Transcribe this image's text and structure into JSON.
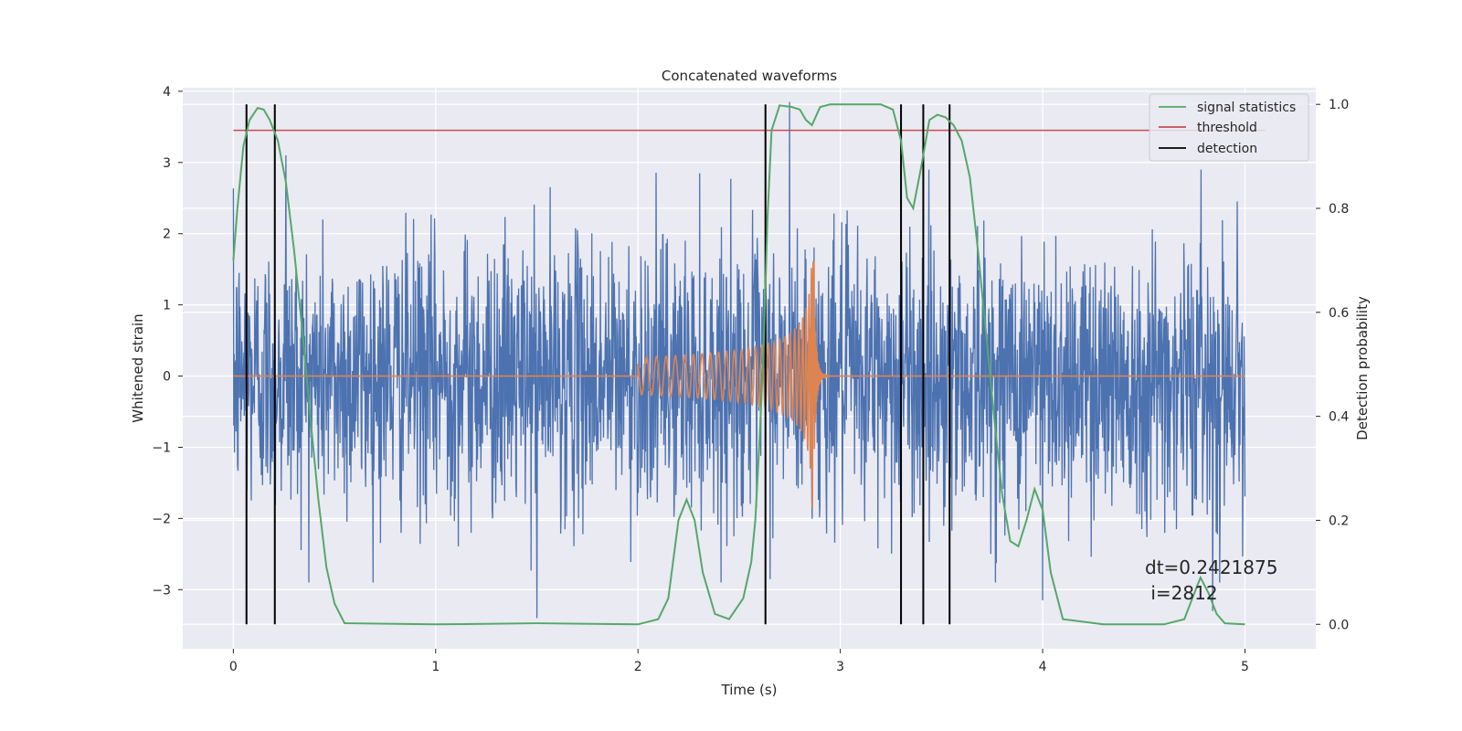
{
  "chart_data": {
    "type": "line",
    "title": "Concatenated waveforms",
    "xlabel": "Time (s)",
    "ylabel": "Whitened strain",
    "ylabel_right": "Detection probability",
    "xlim": [
      -0.25,
      5.35
    ],
    "ylim": [
      -3.83,
      4.05
    ],
    "ylim_right": [
      -0.047,
      1.032
    ],
    "x_ticks": [
      0,
      1,
      2,
      3,
      4,
      5
    ],
    "y_ticks": [
      -3,
      -2,
      -1,
      0,
      1,
      2,
      3,
      4
    ],
    "y_ticks_right": [
      0.0,
      0.2,
      0.4,
      0.6,
      0.8,
      1.0
    ],
    "x_tick_labels": [
      "0",
      "1",
      "2",
      "3",
      "4",
      "5"
    ],
    "y_tick_labels": [
      "−3",
      "−2",
      "−1",
      "0",
      "1",
      "2",
      "3",
      "4"
    ],
    "y_tick_labels_right": [
      "0.0",
      "0.2",
      "0.4",
      "0.6",
      "0.8",
      "1.0"
    ],
    "grid": true,
    "legend_position": "top-right",
    "colors": {
      "background": "#eaeaf2",
      "grid": "#ffffff",
      "strain": "#4c72b0",
      "injection": "#dd8452",
      "signal_statistics": "#55a868",
      "threshold": "#c44e52",
      "detection": "#000000"
    },
    "series": [
      {
        "name": "",
        "kind": "noisy-strain",
        "axis": "left",
        "x_range": [
          0,
          5
        ],
        "amplitude_envelope": [
          -2.6,
          2.6
        ],
        "notable_peaks": [
          {
            "x": 0.26,
            "y": 3.1
          },
          {
            "x": 2.75,
            "y": 3.85
          },
          {
            "x": 1.5,
            "y": -3.4
          },
          {
            "x": 4.84,
            "y": -3.3
          },
          {
            "x": 4.0,
            "y": -3.15
          }
        ]
      },
      {
        "name": "",
        "kind": "chirp-injection",
        "axis": "left",
        "x_range": [
          2.0,
          2.87
        ],
        "merger_time": 2.87,
        "peak": 1.6,
        "trough": -2.2
      },
      {
        "name": "signal statistics",
        "axis": "right",
        "x": [
          0.0,
          0.02,
          0.05,
          0.08,
          0.12,
          0.15,
          0.18,
          0.22,
          0.26,
          0.3,
          0.34,
          0.38,
          0.42,
          0.46,
          0.5,
          0.55,
          1.0,
          1.5,
          2.0,
          2.1,
          2.15,
          2.2,
          2.24,
          2.28,
          2.32,
          2.38,
          2.45,
          2.52,
          2.56,
          2.58,
          2.6,
          2.62,
          2.64,
          2.66,
          2.7,
          2.76,
          2.8,
          2.83,
          2.86,
          2.9,
          2.95,
          3.0,
          3.2,
          3.26,
          3.3,
          3.33,
          3.36,
          3.4,
          3.44,
          3.48,
          3.52,
          3.56,
          3.6,
          3.64,
          3.68,
          3.72,
          3.76,
          3.8,
          3.84,
          3.88,
          3.92,
          3.96,
          4.0,
          4.04,
          4.1,
          4.3,
          4.6,
          4.7,
          4.74,
          4.78,
          4.82,
          4.86,
          4.9,
          5.0
        ],
        "y": [
          0.7,
          0.8,
          0.92,
          0.97,
          0.993,
          0.99,
          0.97,
          0.93,
          0.85,
          0.72,
          0.57,
          0.4,
          0.24,
          0.11,
          0.04,
          0.002,
          0.0,
          0.002,
          0.0,
          0.01,
          0.05,
          0.2,
          0.24,
          0.2,
          0.1,
          0.02,
          0.01,
          0.05,
          0.12,
          0.2,
          0.35,
          0.52,
          0.78,
          0.95,
          0.998,
          0.995,
          0.99,
          0.97,
          0.96,
          0.995,
          1.0,
          1.0,
          1.0,
          0.99,
          0.93,
          0.82,
          0.8,
          0.88,
          0.97,
          0.98,
          0.975,
          0.96,
          0.93,
          0.86,
          0.72,
          0.56,
          0.4,
          0.25,
          0.16,
          0.15,
          0.2,
          0.26,
          0.22,
          0.1,
          0.01,
          0.0,
          0.0,
          0.01,
          0.05,
          0.09,
          0.06,
          0.02,
          0.002,
          0.0
        ]
      },
      {
        "name": "threshold",
        "axis": "right",
        "x": [
          0,
          5.1
        ],
        "y": [
          0.95,
          0.95
        ]
      },
      {
        "name": "detection",
        "axis": "right",
        "kind": "vertical-lines",
        "x": [
          0.065,
          0.205,
          2.63,
          3.3,
          3.41,
          3.54
        ],
        "y_range": [
          0.0,
          1.0
        ]
      }
    ],
    "annotation": {
      "line1": "dt=0.2421875",
      "line2": " i=2812"
    }
  }
}
